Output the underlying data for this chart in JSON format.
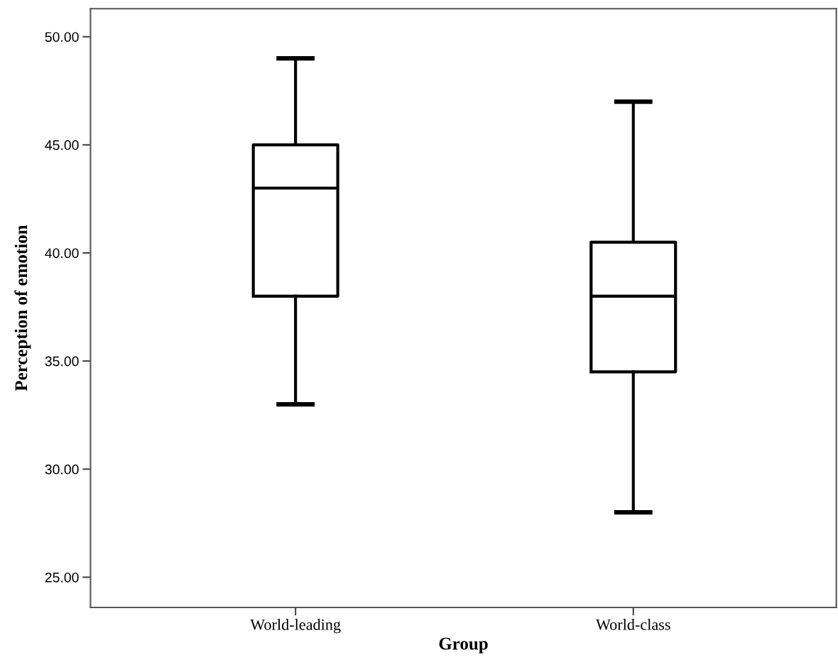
{
  "chart_data": {
    "type": "box",
    "xlabel": "Group",
    "ylabel": "Perception of emotion",
    "categories": [
      "World-leading",
      "World-class"
    ],
    "boxes": [
      {
        "low": 33,
        "q1": 38,
        "median": 43,
        "q3": 45,
        "high": 49
      },
      {
        "low": 28,
        "q1": 34.5,
        "median": 38,
        "q3": 40.5,
        "high": 47
      }
    ],
    "ylim": [
      23.6,
      51.3
    ],
    "yticks": [
      {
        "value": 25,
        "label": "25.00"
      },
      {
        "value": 30,
        "label": "30.00"
      },
      {
        "value": 35,
        "label": "35.00"
      },
      {
        "value": 40,
        "label": "40.00"
      },
      {
        "value": 45,
        "label": "45.00"
      },
      {
        "value": 50,
        "label": "50.00"
      }
    ],
    "grid": false,
    "legend": false
  }
}
